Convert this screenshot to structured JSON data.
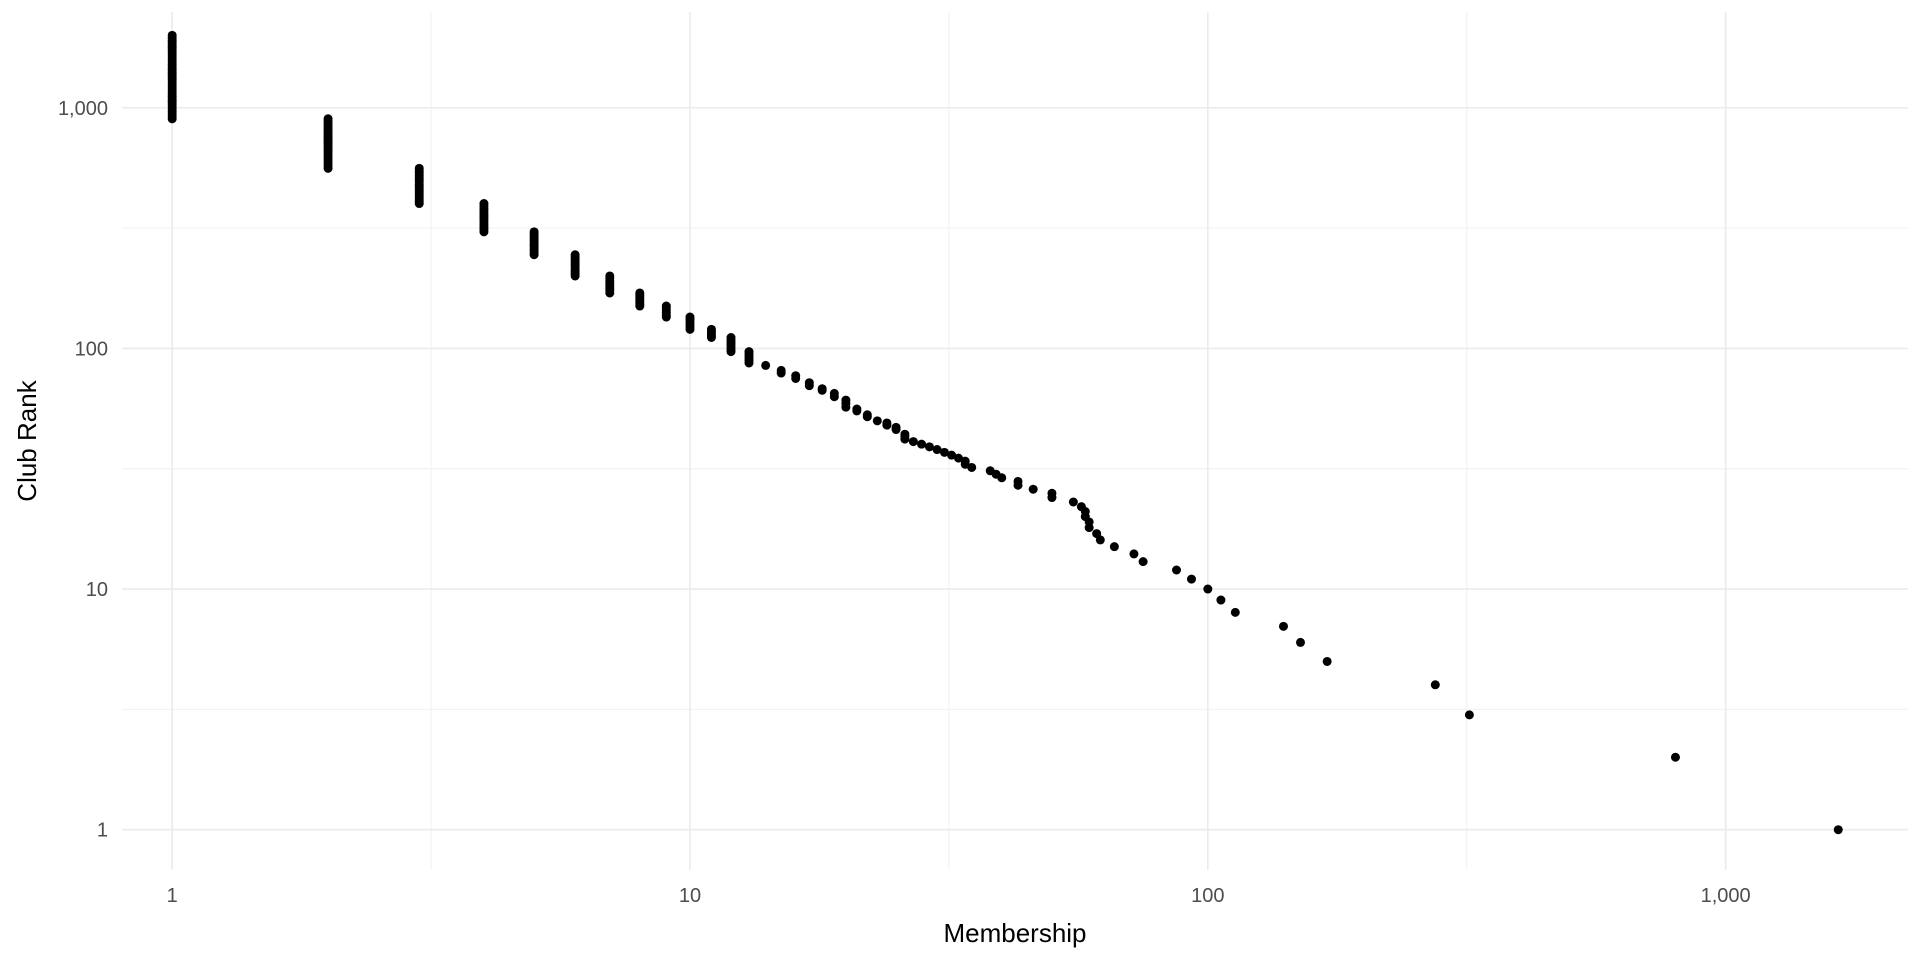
{
  "chart_data": {
    "type": "scatter",
    "title": "",
    "xlabel": "Membership",
    "ylabel": "Club Rank",
    "x_scale": "log10",
    "y_scale": "log10",
    "xlim": [
      0.8,
      2250
    ],
    "ylim": [
      0.68,
      2500
    ],
    "x_ticks": [
      1,
      10,
      100,
      1000
    ],
    "x_tick_labels": [
      "1",
      "10",
      "100",
      "1,000"
    ],
    "y_ticks": [
      1,
      10,
      100,
      1000
    ],
    "y_tick_labels": [
      "1",
      "10",
      "100",
      "1,000"
    ],
    "grid": true,
    "legend": "none",
    "point_color": "#000000",
    "ranges": [
      {
        "x": 1,
        "rank_from": 900,
        "rank_to": 2000
      },
      {
        "x": 2,
        "rank_from": 560,
        "rank_to": 900
      },
      {
        "x": 3,
        "rank_from": 400,
        "rank_to": 560
      },
      {
        "x": 4,
        "rank_from": 305,
        "rank_to": 400
      },
      {
        "x": 5,
        "rank_from": 245,
        "rank_to": 305
      },
      {
        "x": 6,
        "rank_from": 200,
        "rank_to": 245
      },
      {
        "x": 7,
        "rank_from": 170,
        "rank_to": 200
      },
      {
        "x": 8,
        "rank_from": 150,
        "rank_to": 170
      },
      {
        "x": 9,
        "rank_from": 135,
        "rank_to": 150
      },
      {
        "x": 10,
        "rank_from": 120,
        "rank_to": 135
      },
      {
        "x": 11,
        "rank_from": 111,
        "rank_to": 120
      },
      {
        "x": 12,
        "rank_from": 97,
        "rank_to": 111
      },
      {
        "x": 13,
        "rank_from": 87,
        "rank_to": 97
      }
    ],
    "points": [
      {
        "x": 14,
        "y": 85
      },
      {
        "x": 15,
        "y": 81
      },
      {
        "x": 15,
        "y": 79
      },
      {
        "x": 16,
        "y": 77
      },
      {
        "x": 16,
        "y": 75
      },
      {
        "x": 17,
        "y": 72
      },
      {
        "x": 17,
        "y": 70
      },
      {
        "x": 18,
        "y": 68
      },
      {
        "x": 18,
        "y": 67
      },
      {
        "x": 19,
        "y": 65
      },
      {
        "x": 19,
        "y": 63
      },
      {
        "x": 20,
        "y": 61
      },
      {
        "x": 20,
        "y": 59
      },
      {
        "x": 20,
        "y": 57
      },
      {
        "x": 21,
        "y": 56
      },
      {
        "x": 21,
        "y": 55
      },
      {
        "x": 22,
        "y": 53
      },
      {
        "x": 22,
        "y": 52
      },
      {
        "x": 23,
        "y": 50
      },
      {
        "x": 24,
        "y": 49
      },
      {
        "x": 24,
        "y": 48
      },
      {
        "x": 25,
        "y": 47
      },
      {
        "x": 25,
        "y": 46
      },
      {
        "x": 26,
        "y": 44
      },
      {
        "x": 26,
        "y": 43
      },
      {
        "x": 26,
        "y": 42
      },
      {
        "x": 27,
        "y": 41
      },
      {
        "x": 28,
        "y": 40
      },
      {
        "x": 29,
        "y": 39
      },
      {
        "x": 30,
        "y": 38
      },
      {
        "x": 31,
        "y": 37
      },
      {
        "x": 32,
        "y": 36
      },
      {
        "x": 33,
        "y": 35
      },
      {
        "x": 34,
        "y": 34
      },
      {
        "x": 34,
        "y": 33
      },
      {
        "x": 35,
        "y": 32
      },
      {
        "x": 38,
        "y": 31
      },
      {
        "x": 39,
        "y": 30
      },
      {
        "x": 40,
        "y": 29
      },
      {
        "x": 43,
        "y": 28
      },
      {
        "x": 43,
        "y": 27
      },
      {
        "x": 46,
        "y": 26
      },
      {
        "x": 50,
        "y": 25
      },
      {
        "x": 50,
        "y": 24
      },
      {
        "x": 55,
        "y": 23
      },
      {
        "x": 57,
        "y": 22
      },
      {
        "x": 58,
        "y": 21
      },
      {
        "x": 58,
        "y": 20
      },
      {
        "x": 59,
        "y": 19
      },
      {
        "x": 59,
        "y": 18
      },
      {
        "x": 61,
        "y": 17
      },
      {
        "x": 62,
        "y": 16
      },
      {
        "x": 66,
        "y": 15
      },
      {
        "x": 72,
        "y": 14
      },
      {
        "x": 75,
        "y": 13
      },
      {
        "x": 87,
        "y": 12
      },
      {
        "x": 93,
        "y": 11
      },
      {
        "x": 100,
        "y": 10
      },
      {
        "x": 106,
        "y": 9
      },
      {
        "x": 113,
        "y": 8
      },
      {
        "x": 140,
        "y": 7
      },
      {
        "x": 151,
        "y": 6
      },
      {
        "x": 170,
        "y": 5
      },
      {
        "x": 275,
        "y": 4
      },
      {
        "x": 320,
        "y": 3
      },
      {
        "x": 800,
        "y": 2
      },
      {
        "x": 1650,
        "y": 1
      }
    ]
  }
}
